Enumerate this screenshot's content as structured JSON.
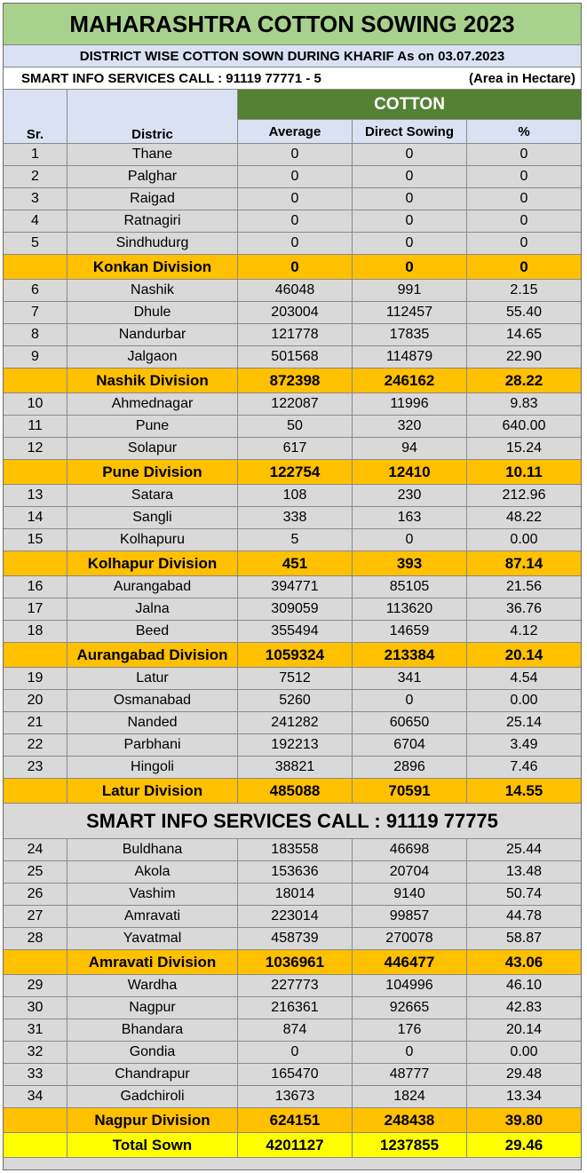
{
  "title": "MAHARASHTRA COTTON SOWING 2023",
  "subtitle": "DISTRICT WISE COTTON SOWN DURING KHARIF  As on 03.07.2023",
  "smart_call_top": "SMART INFO SERVICES CALL : 91119 77771 - 5",
  "area_note": "(Area in Hectare)",
  "headers": {
    "sr": "Sr.",
    "district": "Distric",
    "cotton": "COTTON",
    "average": "Average",
    "direct_sowing": "Direct Sowing",
    "percent": "%"
  },
  "mid_smart_call": "SMART INFO SERVICES CALL : 91119 77775",
  "colors": {
    "title_bg": "#a9d18e",
    "header_bg": "#d9e1f2",
    "cotton_bg": "#548235",
    "division_bg": "#ffc000",
    "total_bg": "#ffff00",
    "row_bg": "#d9d9d9"
  },
  "rows": [
    {
      "type": "data",
      "sr": "1",
      "district": "Thane",
      "average": "0",
      "direct": "0",
      "pct": "0"
    },
    {
      "type": "data",
      "sr": "2",
      "district": "Palghar",
      "average": "0",
      "direct": "0",
      "pct": "0"
    },
    {
      "type": "data",
      "sr": "3",
      "district": "Raigad",
      "average": "0",
      "direct": "0",
      "pct": "0"
    },
    {
      "type": "data",
      "sr": "4",
      "district": "Ratnagiri",
      "average": "0",
      "direct": "0",
      "pct": "0"
    },
    {
      "type": "data",
      "sr": "5",
      "district": "Sindhudurg",
      "average": "0",
      "direct": "0",
      "pct": "0"
    },
    {
      "type": "division",
      "sr": "",
      "district": "Konkan Division",
      "average": "0",
      "direct": "0",
      "pct": "0"
    },
    {
      "type": "data",
      "sr": "6",
      "district": "Nashik",
      "average": "46048",
      "direct": "991",
      "pct": "2.15"
    },
    {
      "type": "data",
      "sr": "7",
      "district": "Dhule",
      "average": "203004",
      "direct": "112457",
      "pct": "55.40"
    },
    {
      "type": "data",
      "sr": "8",
      "district": "Nandurbar",
      "average": "121778",
      "direct": "17835",
      "pct": "14.65"
    },
    {
      "type": "data",
      "sr": "9",
      "district": "Jalgaon",
      "average": "501568",
      "direct": "114879",
      "pct": "22.90"
    },
    {
      "type": "division",
      "sr": "",
      "district": "Nashik Division",
      "average": "872398",
      "direct": "246162",
      "pct": "28.22"
    },
    {
      "type": "data",
      "sr": "10",
      "district": "Ahmednagar",
      "average": "122087",
      "direct": "11996",
      "pct": "9.83"
    },
    {
      "type": "data",
      "sr": "11",
      "district": "Pune",
      "average": "50",
      "direct": "320",
      "pct": "640.00"
    },
    {
      "type": "data",
      "sr": "12",
      "district": "Solapur",
      "average": "617",
      "direct": "94",
      "pct": "15.24"
    },
    {
      "type": "division",
      "sr": "",
      "district": "Pune Division",
      "average": "122754",
      "direct": "12410",
      "pct": "10.11"
    },
    {
      "type": "data",
      "sr": "13",
      "district": "Satara",
      "average": "108",
      "direct": "230",
      "pct": "212.96"
    },
    {
      "type": "data",
      "sr": "14",
      "district": "Sangli",
      "average": "338",
      "direct": "163",
      "pct": "48.22"
    },
    {
      "type": "data",
      "sr": "15",
      "district": "Kolhapuru",
      "average": "5",
      "direct": "0",
      "pct": "0.00"
    },
    {
      "type": "division",
      "sr": "",
      "district": "Kolhapur Division",
      "average": "451",
      "direct": "393",
      "pct": "87.14"
    },
    {
      "type": "data",
      "sr": "16",
      "district": "Aurangabad",
      "average": "394771",
      "direct": "85105",
      "pct": "21.56"
    },
    {
      "type": "data",
      "sr": "17",
      "district": "Jalna",
      "average": "309059",
      "direct": "113620",
      "pct": "36.76"
    },
    {
      "type": "data",
      "sr": "18",
      "district": "Beed",
      "average": "355494",
      "direct": "14659",
      "pct": "4.12"
    },
    {
      "type": "division",
      "sr": "",
      "district": "Aurangabad Division",
      "average": "1059324",
      "direct": "213384",
      "pct": "20.14"
    },
    {
      "type": "data",
      "sr": "19",
      "district": "Latur",
      "average": "7512",
      "direct": "341",
      "pct": "4.54"
    },
    {
      "type": "data",
      "sr": "20",
      "district": "Osmanabad",
      "average": "5260",
      "direct": "0",
      "pct": "0.00"
    },
    {
      "type": "data",
      "sr": "21",
      "district": "Nanded",
      "average": "241282",
      "direct": "60650",
      "pct": "25.14"
    },
    {
      "type": "data",
      "sr": "22",
      "district": "Parbhani",
      "average": "192213",
      "direct": "6704",
      "pct": "3.49"
    },
    {
      "type": "data",
      "sr": "23",
      "district": "Hingoli",
      "average": "38821",
      "direct": "2896",
      "pct": "7.46"
    },
    {
      "type": "division",
      "sr": "",
      "district": "Latur Division",
      "average": "485088",
      "direct": "70591",
      "pct": "14.55"
    },
    {
      "type": "banner"
    },
    {
      "type": "data",
      "sr": "24",
      "district": "Buldhana",
      "average": "183558",
      "direct": "46698",
      "pct": "25.44"
    },
    {
      "type": "data",
      "sr": "25",
      "district": "Akola",
      "average": "153636",
      "direct": "20704",
      "pct": "13.48"
    },
    {
      "type": "data",
      "sr": "26",
      "district": "Vashim",
      "average": "18014",
      "direct": "9140",
      "pct": "50.74"
    },
    {
      "type": "data",
      "sr": "27",
      "district": "Amravati",
      "average": "223014",
      "direct": "99857",
      "pct": "44.78"
    },
    {
      "type": "data",
      "sr": "28",
      "district": "Yavatmal",
      "average": "458739",
      "direct": "270078",
      "pct": "58.87"
    },
    {
      "type": "division",
      "sr": "",
      "district": "Amravati Division",
      "average": "1036961",
      "direct": "446477",
      "pct": "43.06"
    },
    {
      "type": "data",
      "sr": "29",
      "district": "Wardha",
      "average": "227773",
      "direct": "104996",
      "pct": "46.10"
    },
    {
      "type": "data",
      "sr": "30",
      "district": "Nagpur",
      "average": "216361",
      "direct": "92665",
      "pct": "42.83"
    },
    {
      "type": "data",
      "sr": "31",
      "district": "Bhandara",
      "average": "874",
      "direct": "176",
      "pct": "20.14"
    },
    {
      "type": "data",
      "sr": "32",
      "district": "Gondia",
      "average": "0",
      "direct": "0",
      "pct": "0.00"
    },
    {
      "type": "data",
      "sr": "33",
      "district": "Chandrapur",
      "average": "165470",
      "direct": "48777",
      "pct": "29.48"
    },
    {
      "type": "data",
      "sr": "34",
      "district": "Gadchiroli",
      "average": "13673",
      "direct": "1824",
      "pct": "13.34"
    },
    {
      "type": "division",
      "sr": "",
      "district": "Nagpur Division",
      "average": "624151",
      "direct": "248438",
      "pct": "39.80"
    },
    {
      "type": "total",
      "sr": "",
      "district": "Total Sown",
      "average": "4201127",
      "direct": "1237855",
      "pct": "29.46"
    }
  ]
}
